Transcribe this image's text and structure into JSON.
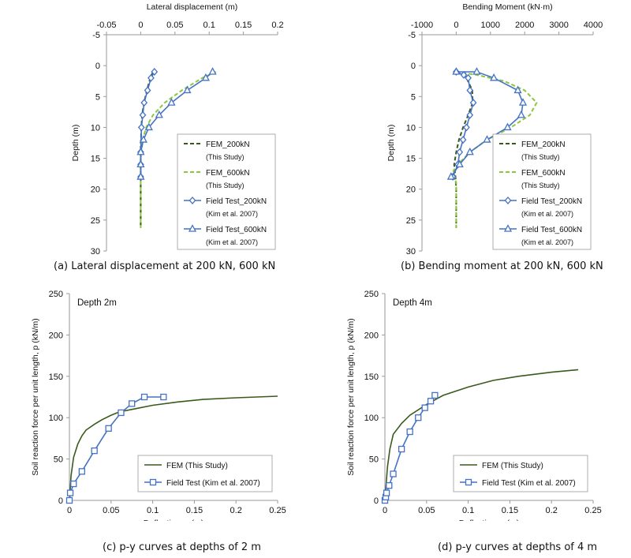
{
  "colors": {
    "fem_200": "#3a5a1c",
    "fem_600": "#8cc63f",
    "field_200": "#4472c4",
    "field_600": "#4472c4",
    "fem_py": "#3a5a1c",
    "field_py": "#4472c4",
    "axis": "#9a9a9a",
    "text": "#111111"
  },
  "captions": [
    "(a) Lateral displacement at 200 kN, 600 kN",
    "(b) Bending moment at 200 kN, 600 kN",
    "(c) p-y curves at depths of 2 m",
    "(d) p-y curves at depths of 4 m"
  ],
  "chart_data": [
    {
      "type": "line",
      "title": "",
      "xlabel": "Lateral displacement (m)",
      "ylabel": "Depth (m)",
      "xlim": [
        -0.05,
        0.2
      ],
      "ylim": [
        -5,
        30
      ],
      "x_ticks": [
        "-0.05",
        "0",
        "0.05",
        "0.1",
        "0.15",
        "0.2"
      ],
      "y_ticks": [
        "-5",
        "0",
        "5",
        "10",
        "15",
        "20",
        "25",
        "30"
      ],
      "y_inverted": true,
      "x_axis_position": "top",
      "legend_position": "right",
      "series": [
        {
          "name": "FEM_200kN",
          "name2": "(This Study)",
          "style": "dashed",
          "color_key": "fem_200",
          "marker": "none",
          "points": [
            [
              0.018,
              1
            ],
            [
              0.014,
              2
            ],
            [
              0.009,
              4
            ],
            [
              0.005,
              6
            ],
            [
              0.002,
              8
            ],
            [
              0.001,
              10
            ],
            [
              0,
              13
            ],
            [
              0,
              16
            ],
            [
              0,
              20
            ],
            [
              0,
              26.3
            ]
          ]
        },
        {
          "name": "FEM_600kN",
          "name2": "(This Study)",
          "style": "dashed",
          "color_key": "fem_600",
          "marker": "none",
          "points": [
            [
              0.11,
              1
            ],
            [
              0.09,
              2
            ],
            [
              0.06,
              4
            ],
            [
              0.035,
              6
            ],
            [
              0.018,
              8
            ],
            [
              0.008,
              10
            ],
            [
              0.003,
              12
            ],
            [
              0,
              15
            ],
            [
              0,
              20
            ],
            [
              0,
              26.3
            ]
          ]
        },
        {
          "name": "Field Test_200kN",
          "name2": "(Kim et al. 2007)",
          "style": "solid",
          "color_key": "field_200",
          "marker": "diamond",
          "points": [
            [
              0.02,
              1
            ],
            [
              0.015,
              2
            ],
            [
              0.01,
              4
            ],
            [
              0.005,
              6
            ],
            [
              0.003,
              8
            ],
            [
              0.001,
              10
            ],
            [
              0,
              14
            ],
            [
              0,
              16
            ],
            [
              0,
              18
            ]
          ]
        },
        {
          "name": "Field Test_600kN",
          "name2": "(Kim et al. 2007)",
          "style": "solid",
          "color_key": "field_600",
          "marker": "triangle",
          "points": [
            [
              0.105,
              1
            ],
            [
              0.095,
              2
            ],
            [
              0.068,
              4
            ],
            [
              0.045,
              6
            ],
            [
              0.027,
              8
            ],
            [
              0.012,
              10
            ],
            [
              0.004,
              12
            ],
            [
              0,
              14
            ],
            [
              0,
              16
            ],
            [
              0,
              18
            ]
          ]
        }
      ]
    },
    {
      "type": "line",
      "title": "",
      "xlabel": "Bending Moment (kN·m)",
      "ylabel": "Depth (m)",
      "xlim": [
        -1000,
        4000
      ],
      "ylim": [
        -5,
        30
      ],
      "x_ticks": [
        "-1000",
        "0",
        "1000",
        "2000",
        "3000",
        "4000"
      ],
      "y_ticks": [
        "-5",
        "0",
        "5",
        "10",
        "15",
        "20",
        "25",
        "30"
      ],
      "y_inverted": true,
      "x_axis_position": "top",
      "legend_position": "right",
      "series": [
        {
          "name": "FEM_200kN",
          "name2": "(This Study)",
          "style": "dashed",
          "color_key": "fem_200",
          "marker": "none",
          "points": [
            [
              0,
              1
            ],
            [
              300,
              2
            ],
            [
              470,
              4
            ],
            [
              480,
              6
            ],
            [
              350,
              8
            ],
            [
              200,
              10
            ],
            [
              80,
              12
            ],
            [
              0,
              14
            ],
            [
              -60,
              16
            ],
            [
              -20,
              18
            ],
            [
              0,
              20
            ],
            [
              0,
              26.3
            ]
          ]
        },
        {
          "name": "FEM_600kN",
          "name2": "(This Study)",
          "style": "dashed",
          "color_key": "fem_600",
          "marker": "none",
          "points": [
            [
              0,
              1
            ],
            [
              600,
              1.5
            ],
            [
              1400,
              2.5
            ],
            [
              2000,
              4
            ],
            [
              2350,
              6
            ],
            [
              2150,
              8
            ],
            [
              1600,
              10
            ],
            [
              900,
              12
            ],
            [
              400,
              14
            ],
            [
              50,
              16
            ],
            [
              -80,
              17
            ],
            [
              0,
              19
            ],
            [
              0,
              26.3
            ]
          ]
        },
        {
          "name": "Field Test_200kN",
          "name2": "(Kim et al. 2007)",
          "style": "solid",
          "color_key": "field_200",
          "marker": "diamond",
          "points": [
            [
              0,
              1
            ],
            [
              220,
              1.5
            ],
            [
              350,
              2
            ],
            [
              400,
              4
            ],
            [
              500,
              6
            ],
            [
              400,
              8
            ],
            [
              300,
              10
            ],
            [
              200,
              12
            ],
            [
              100,
              14
            ],
            [
              50,
              16
            ],
            [
              -100,
              18
            ]
          ]
        },
        {
          "name": "Field Test_600kN",
          "name2": "(Kim et al. 2007)",
          "style": "solid",
          "color_key": "field_600",
          "marker": "triangle",
          "points": [
            [
              0,
              1
            ],
            [
              600,
              1
            ],
            [
              1100,
              2
            ],
            [
              1800,
              4
            ],
            [
              1950,
              6
            ],
            [
              1900,
              8
            ],
            [
              1500,
              10
            ],
            [
              900,
              12
            ],
            [
              400,
              14
            ],
            [
              100,
              16
            ],
            [
              -150,
              18
            ]
          ]
        }
      ]
    },
    {
      "type": "line",
      "title": "",
      "annotation": "Depth 2m",
      "xlabel": "Deflection, y (m)",
      "ylabel": "Soil reaction force per unit length, p (kN/m)",
      "xlim": [
        0,
        0.25
      ],
      "ylim": [
        0,
        250
      ],
      "x_ticks": [
        "0",
        "0.05",
        "0.1",
        "0.15",
        "0.2",
        "0.25"
      ],
      "y_ticks": [
        "0",
        "50",
        "100",
        "150",
        "200",
        "250"
      ],
      "legend_position": "bottom-right",
      "series": [
        {
          "name": "FEM (This Study)",
          "style": "solid",
          "color_key": "fem_py",
          "marker": "none",
          "points": [
            [
              0,
              0
            ],
            [
              0.002,
              30
            ],
            [
              0.005,
              52
            ],
            [
              0.01,
              68
            ],
            [
              0.015,
              78
            ],
            [
              0.02,
              85
            ],
            [
              0.03,
              92
            ],
            [
              0.04,
              98
            ],
            [
              0.05,
              103
            ],
            [
              0.06,
              107
            ],
            [
              0.08,
              111
            ],
            [
              0.1,
              115
            ],
            [
              0.13,
              119
            ],
            [
              0.16,
              122
            ],
            [
              0.2,
              124
            ],
            [
              0.25,
              126
            ]
          ]
        },
        {
          "name": "Field Test (Kim et al. 2007)",
          "style": "solid",
          "color_key": "field_py",
          "marker": "square",
          "points": [
            [
              0,
              0
            ],
            [
              0.001,
              9
            ],
            [
              0.005,
              20
            ],
            [
              0.015,
              35
            ],
            [
              0.03,
              60
            ],
            [
              0.047,
              87
            ],
            [
              0.062,
              106
            ],
            [
              0.075,
              117
            ],
            [
              0.09,
              125
            ],
            [
              0.113,
              125
            ]
          ]
        }
      ]
    },
    {
      "type": "line",
      "title": "",
      "annotation": "Depth 4m",
      "xlabel": "Deflection, y (m)",
      "ylabel": "Soil reaction force per unit length, p (kN/m)",
      "xlim": [
        0,
        0.25
      ],
      "ylim": [
        0,
        250
      ],
      "x_ticks": [
        "0",
        "0.05",
        "0.1",
        "0.15",
        "0.2",
        "0.25"
      ],
      "y_ticks": [
        "0",
        "50",
        "100",
        "150",
        "200",
        "250"
      ],
      "legend_position": "bottom-right",
      "series": [
        {
          "name": "FEM (This Study)",
          "style": "solid",
          "color_key": "fem_py",
          "marker": "none",
          "points": [
            [
              0,
              0
            ],
            [
              0.003,
              40
            ],
            [
              0.006,
              62
            ],
            [
              0.01,
              80
            ],
            [
              0.02,
              93
            ],
            [
              0.03,
              103
            ],
            [
              0.05,
              116
            ],
            [
              0.07,
              127
            ],
            [
              0.1,
              137
            ],
            [
              0.13,
              145
            ],
            [
              0.16,
              150
            ],
            [
              0.2,
              155
            ],
            [
              0.232,
              158
            ]
          ]
        },
        {
          "name": "Field Test (Kim et al. 2007)",
          "style": "solid",
          "color_key": "field_py",
          "marker": "square",
          "points": [
            [
              0,
              0
            ],
            [
              0.001,
              4
            ],
            [
              0.002,
              9
            ],
            [
              0.005,
              18
            ],
            [
              0.01,
              32
            ],
            [
              0.02,
              62
            ],
            [
              0.03,
              83
            ],
            [
              0.04,
              100
            ],
            [
              0.048,
              112
            ],
            [
              0.055,
              120
            ],
            [
              0.06,
              127
            ]
          ]
        }
      ]
    }
  ]
}
